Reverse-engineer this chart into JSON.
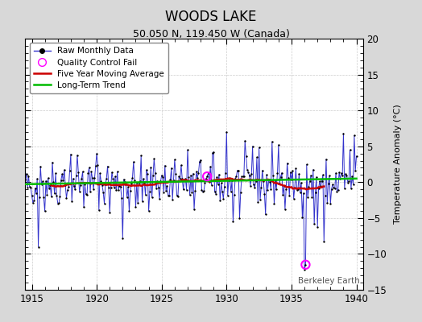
{
  "title": "WOODS LAKE",
  "subtitle": "50.050 N, 119.450 W (Canada)",
  "ylabel": "Temperature Anomaly (°C)",
  "watermark": "Berkeley Earth",
  "xlim": [
    1914.5,
    1940.5
  ],
  "ylim": [
    -15,
    20
  ],
  "yticks": [
    -15,
    -10,
    -5,
    0,
    5,
    10,
    15,
    20
  ],
  "xticks": [
    1915,
    1920,
    1925,
    1930,
    1935,
    1940
  ],
  "bg_color": "#d8d8d8",
  "plot_bg_color": "#ffffff",
  "raw_line_color": "#3333cc",
  "raw_dot_color": "#000000",
  "ma_color": "#cc0000",
  "trend_color": "#00bb00",
  "qc_color": "#ff00ff",
  "seed": 42,
  "start_year": 1914,
  "num_months": 313
}
